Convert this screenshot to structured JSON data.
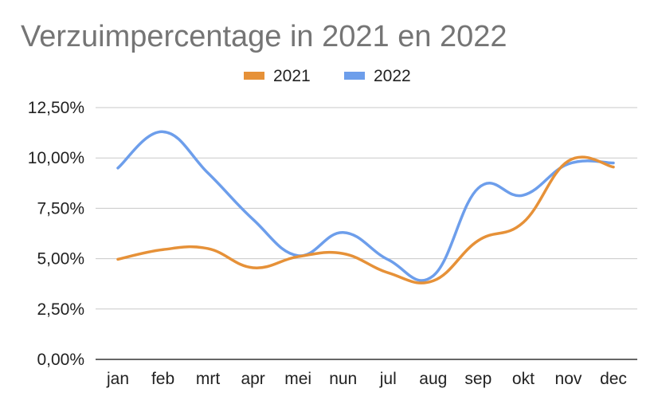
{
  "chart_data": {
    "type": "line",
    "title": "Verzuimpercentage in 2021 en 2022",
    "xlabel": "",
    "ylabel": "",
    "categories": [
      "jan",
      "feb",
      "mrt",
      "apr",
      "mei",
      "nun",
      "jul",
      "aug",
      "sep",
      "okt",
      "nov",
      "dec"
    ],
    "y_ticks": [
      "0,00%",
      "2,50%",
      "5,00%",
      "7,50%",
      "10,00%",
      "12,50%"
    ],
    "ylim": [
      0,
      12.5
    ],
    "grid": true,
    "legend_position": "top",
    "smooth": true,
    "series": [
      {
        "name": "2021",
        "color": "#E69138",
        "values": [
          4.97,
          5.45,
          5.5,
          4.55,
          5.1,
          5.25,
          4.3,
          3.9,
          5.9,
          6.8,
          9.85,
          9.55
        ]
      },
      {
        "name": "2022",
        "color": "#6D9EEB",
        "values": [
          9.5,
          11.3,
          9.25,
          6.95,
          5.15,
          6.3,
          4.95,
          4.15,
          8.5,
          8.15,
          9.7,
          9.75
        ]
      }
    ]
  }
}
